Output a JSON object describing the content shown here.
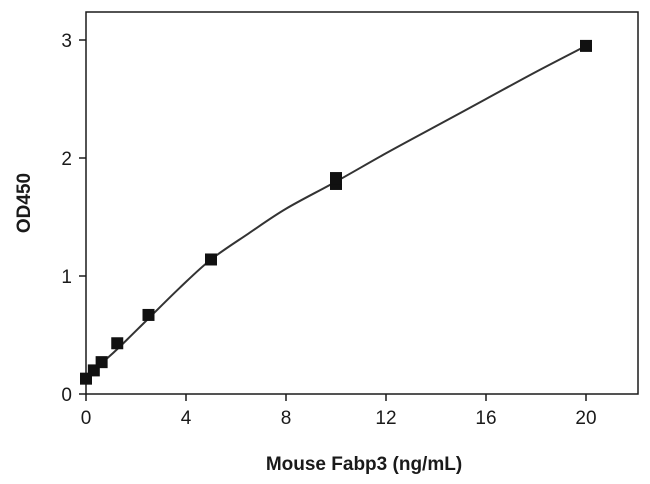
{
  "chart_data": {
    "type": "scatter",
    "title": "",
    "xlabel": "Mouse Fabp3 (ng/mL)",
    "ylabel": "OD450",
    "xlim": [
      0,
      21
    ],
    "ylim": [
      0,
      3.3
    ],
    "x_ticks": [
      0,
      4,
      8,
      12,
      16,
      20
    ],
    "y_ticks": [
      0,
      1,
      2,
      3
    ],
    "grid": false,
    "legend": "none",
    "series": [
      {
        "marker": "square",
        "color": "#111111",
        "points": [
          {
            "x": 0,
            "y": 0.13
          },
          {
            "x": 0.3125,
            "y": 0.2
          },
          {
            "x": 0.625,
            "y": 0.27
          },
          {
            "x": 1.25,
            "y": 0.43
          },
          {
            "x": 2.5,
            "y": 0.67
          },
          {
            "x": 5,
            "y": 1.14
          },
          {
            "x": 10,
            "y": 1.78
          },
          {
            "x": 10,
            "y": 1.83
          },
          {
            "x": 20,
            "y": 2.95
          }
        ]
      }
    ],
    "fit_curve": {
      "color": "#333333",
      "points": [
        {
          "x": 0,
          "y": 0.13
        },
        {
          "x": 0.625,
          "y": 0.26
        },
        {
          "x": 1.25,
          "y": 0.38
        },
        {
          "x": 2.5,
          "y": 0.64
        },
        {
          "x": 3.75,
          "y": 0.9
        },
        {
          "x": 5,
          "y": 1.14
        },
        {
          "x": 6.5,
          "y": 1.36
        },
        {
          "x": 8,
          "y": 1.57
        },
        {
          "x": 10,
          "y": 1.8
        },
        {
          "x": 12,
          "y": 2.04
        },
        {
          "x": 14,
          "y": 2.27
        },
        {
          "x": 16,
          "y": 2.5
        },
        {
          "x": 18,
          "y": 2.73
        },
        {
          "x": 20,
          "y": 2.95
        }
      ]
    }
  }
}
